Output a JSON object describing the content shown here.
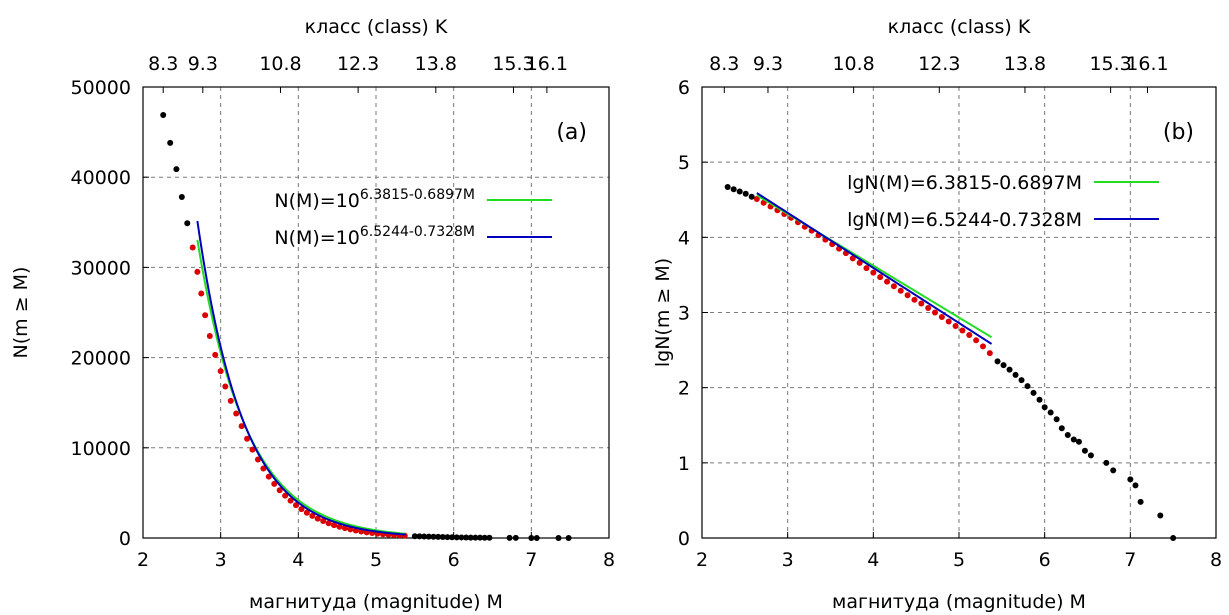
{
  "chart_data": [
    {
      "id": "a",
      "type": "scatter",
      "panel_label": "(a)",
      "xlabel": "магнитуда (magnitude) M",
      "ylabel": "N(m ≥ M)",
      "x2label": "класс (class) K",
      "xlim": [
        2,
        8
      ],
      "ylim": [
        0,
        50000
      ],
      "xticks": [
        "2",
        "3",
        "4",
        "5",
        "6",
        "7",
        "8"
      ],
      "yticks": [
        "0",
        "10000",
        "20000",
        "30000",
        "40000",
        "50000"
      ],
      "x2ticks": [
        {
          "label": "8.3",
          "m": 2.26
        },
        {
          "label": "9.3",
          "m": 2.77
        },
        {
          "label": "10.8",
          "m": 3.77
        },
        {
          "label": "12.3",
          "m": 4.77
        },
        {
          "label": "13.8",
          "m": 5.77
        },
        {
          "label": "15.3",
          "m": 6.77
        },
        {
          "label": "16.1",
          "m": 7.2
        }
      ],
      "grid": true,
      "legend_position": "top-right",
      "series": [
        {
          "role": "points",
          "color": "#000000",
          "x": [
            2.26,
            2.35,
            2.43,
            2.5,
            2.57,
            5.5,
            5.56,
            5.62,
            5.68,
            5.74,
            5.8,
            5.86,
            5.92,
            5.98,
            6.04,
            6.1,
            6.16,
            6.22,
            6.28,
            6.34,
            6.4,
            6.46,
            6.72,
            6.8,
            7.0,
            7.07,
            7.35,
            7.48
          ],
          "y": [
            46900,
            43800,
            40900,
            37800,
            34900,
            200,
            180,
            165,
            150,
            135,
            120,
            105,
            92,
            82,
            72,
            62,
            55,
            47,
            41,
            35,
            30,
            25,
            10,
            8,
            6,
            3,
            2,
            1
          ]
        },
        {
          "role": "points",
          "color": "#dd0000",
          "x": [
            2.64,
            2.7,
            2.75,
            2.8,
            2.86,
            2.93,
            3.0,
            3.06,
            3.13,
            3.2,
            3.27,
            3.34,
            3.41,
            3.48,
            3.55,
            3.62,
            3.69,
            3.76,
            3.83,
            3.9,
            3.97,
            4.04,
            4.11,
            4.18,
            4.25,
            4.32,
            4.39,
            4.46,
            4.53,
            4.6,
            4.67,
            4.74,
            4.81,
            4.88,
            4.95,
            5.02,
            5.09,
            5.16,
            5.23,
            5.3,
            5.37
          ],
          "y": [
            32200,
            29500,
            27100,
            24700,
            22400,
            20300,
            18500,
            16800,
            15200,
            13800,
            12400,
            11000,
            9800,
            8700,
            7700,
            6800,
            6000,
            5300,
            4700,
            4150,
            3650,
            3200,
            2800,
            2450,
            2150,
            1880,
            1640,
            1430,
            1250,
            1090,
            950,
            830,
            720,
            630,
            550,
            480,
            420,
            370,
            330,
            300,
            270
          ]
        },
        {
          "role": "fit",
          "name": "N(M)=10^{6.3815-0.6897M}",
          "color": "#22dd22",
          "a": 6.3815,
          "b": 0.6897,
          "domain": [
            2.7,
            5.38
          ],
          "log": false
        },
        {
          "role": "fit",
          "name": "N(M)=10^{6.5244-0.7328M}",
          "color": "#0000bb",
          "a": 6.5244,
          "b": 0.7328,
          "domain": [
            2.7,
            5.38
          ],
          "log": false
        }
      ]
    },
    {
      "id": "b",
      "type": "scatter",
      "panel_label": "(b)",
      "xlabel": "магнитуда (magnitude) M",
      "ylabel": "lgN(m ≥ M)",
      "x2label": "класс (class) K",
      "xlim": [
        2,
        8
      ],
      "ylim": [
        0,
        6
      ],
      "xticks": [
        "2",
        "3",
        "4",
        "5",
        "6",
        "7",
        "8"
      ],
      "yticks": [
        "0",
        "1",
        "2",
        "3",
        "4",
        "5",
        "6"
      ],
      "x2ticks": [
        {
          "label": "8.3",
          "m": 2.26
        },
        {
          "label": "9.3",
          "m": 2.77
        },
        {
          "label": "10.8",
          "m": 3.77
        },
        {
          "label": "12.3",
          "m": 4.77
        },
        {
          "label": "13.8",
          "m": 5.77
        },
        {
          "label": "15.3",
          "m": 6.77
        },
        {
          "label": "16.1",
          "m": 7.2
        }
      ],
      "grid": true,
      "legend_position": "top-right",
      "series": [
        {
          "role": "points",
          "color": "#000000",
          "x": [
            2.3,
            2.37,
            2.44,
            2.51,
            2.58,
            5.45,
            5.52,
            5.59,
            5.66,
            5.73,
            5.8,
            5.87,
            5.94,
            6.0,
            6.07,
            6.14,
            6.2,
            6.27,
            6.34,
            6.4,
            6.47,
            6.54,
            6.72,
            6.8,
            7.0,
            7.06,
            7.12,
            7.35,
            7.5
          ],
          "y": [
            4.67,
            4.64,
            4.61,
            4.58,
            4.54,
            2.35,
            2.3,
            2.24,
            2.17,
            2.1,
            2.02,
            1.93,
            1.84,
            1.74,
            1.67,
            1.58,
            1.46,
            1.37,
            1.31,
            1.28,
            1.16,
            1.1,
            1.0,
            0.9,
            0.78,
            0.7,
            0.48,
            0.3,
            0.0
          ]
        },
        {
          "role": "points",
          "color": "#dd0000",
          "x": [
            2.64,
            2.72,
            2.8,
            2.88,
            2.96,
            3.04,
            3.12,
            3.2,
            3.28,
            3.36,
            3.44,
            3.52,
            3.6,
            3.68,
            3.76,
            3.84,
            3.92,
            4.0,
            4.08,
            4.16,
            4.24,
            4.32,
            4.4,
            4.48,
            4.56,
            4.64,
            4.72,
            4.8,
            4.88,
            4.96,
            5.04,
            5.12,
            5.2,
            5.28,
            5.36
          ],
          "y": [
            4.51,
            4.46,
            4.41,
            4.36,
            4.31,
            4.26,
            4.2,
            4.14,
            4.09,
            4.03,
            3.97,
            3.91,
            3.85,
            3.79,
            3.72,
            3.66,
            3.59,
            3.53,
            3.47,
            3.41,
            3.35,
            3.29,
            3.23,
            3.17,
            3.12,
            3.06,
            3.0,
            2.94,
            2.88,
            2.82,
            2.76,
            2.7,
            2.63,
            2.55,
            2.46
          ]
        },
        {
          "role": "fit",
          "name": "lgN(M)=6.3815-0.6897M",
          "color": "#22dd22",
          "a": 6.3815,
          "b": 0.6897,
          "domain": [
            2.64,
            5.38
          ],
          "log": true
        },
        {
          "role": "fit",
          "name": "lgN(M)=6.5244-0.7328M",
          "color": "#0000bb",
          "a": 6.5244,
          "b": 0.7328,
          "domain": [
            2.64,
            5.38
          ],
          "log": true
        }
      ]
    }
  ]
}
